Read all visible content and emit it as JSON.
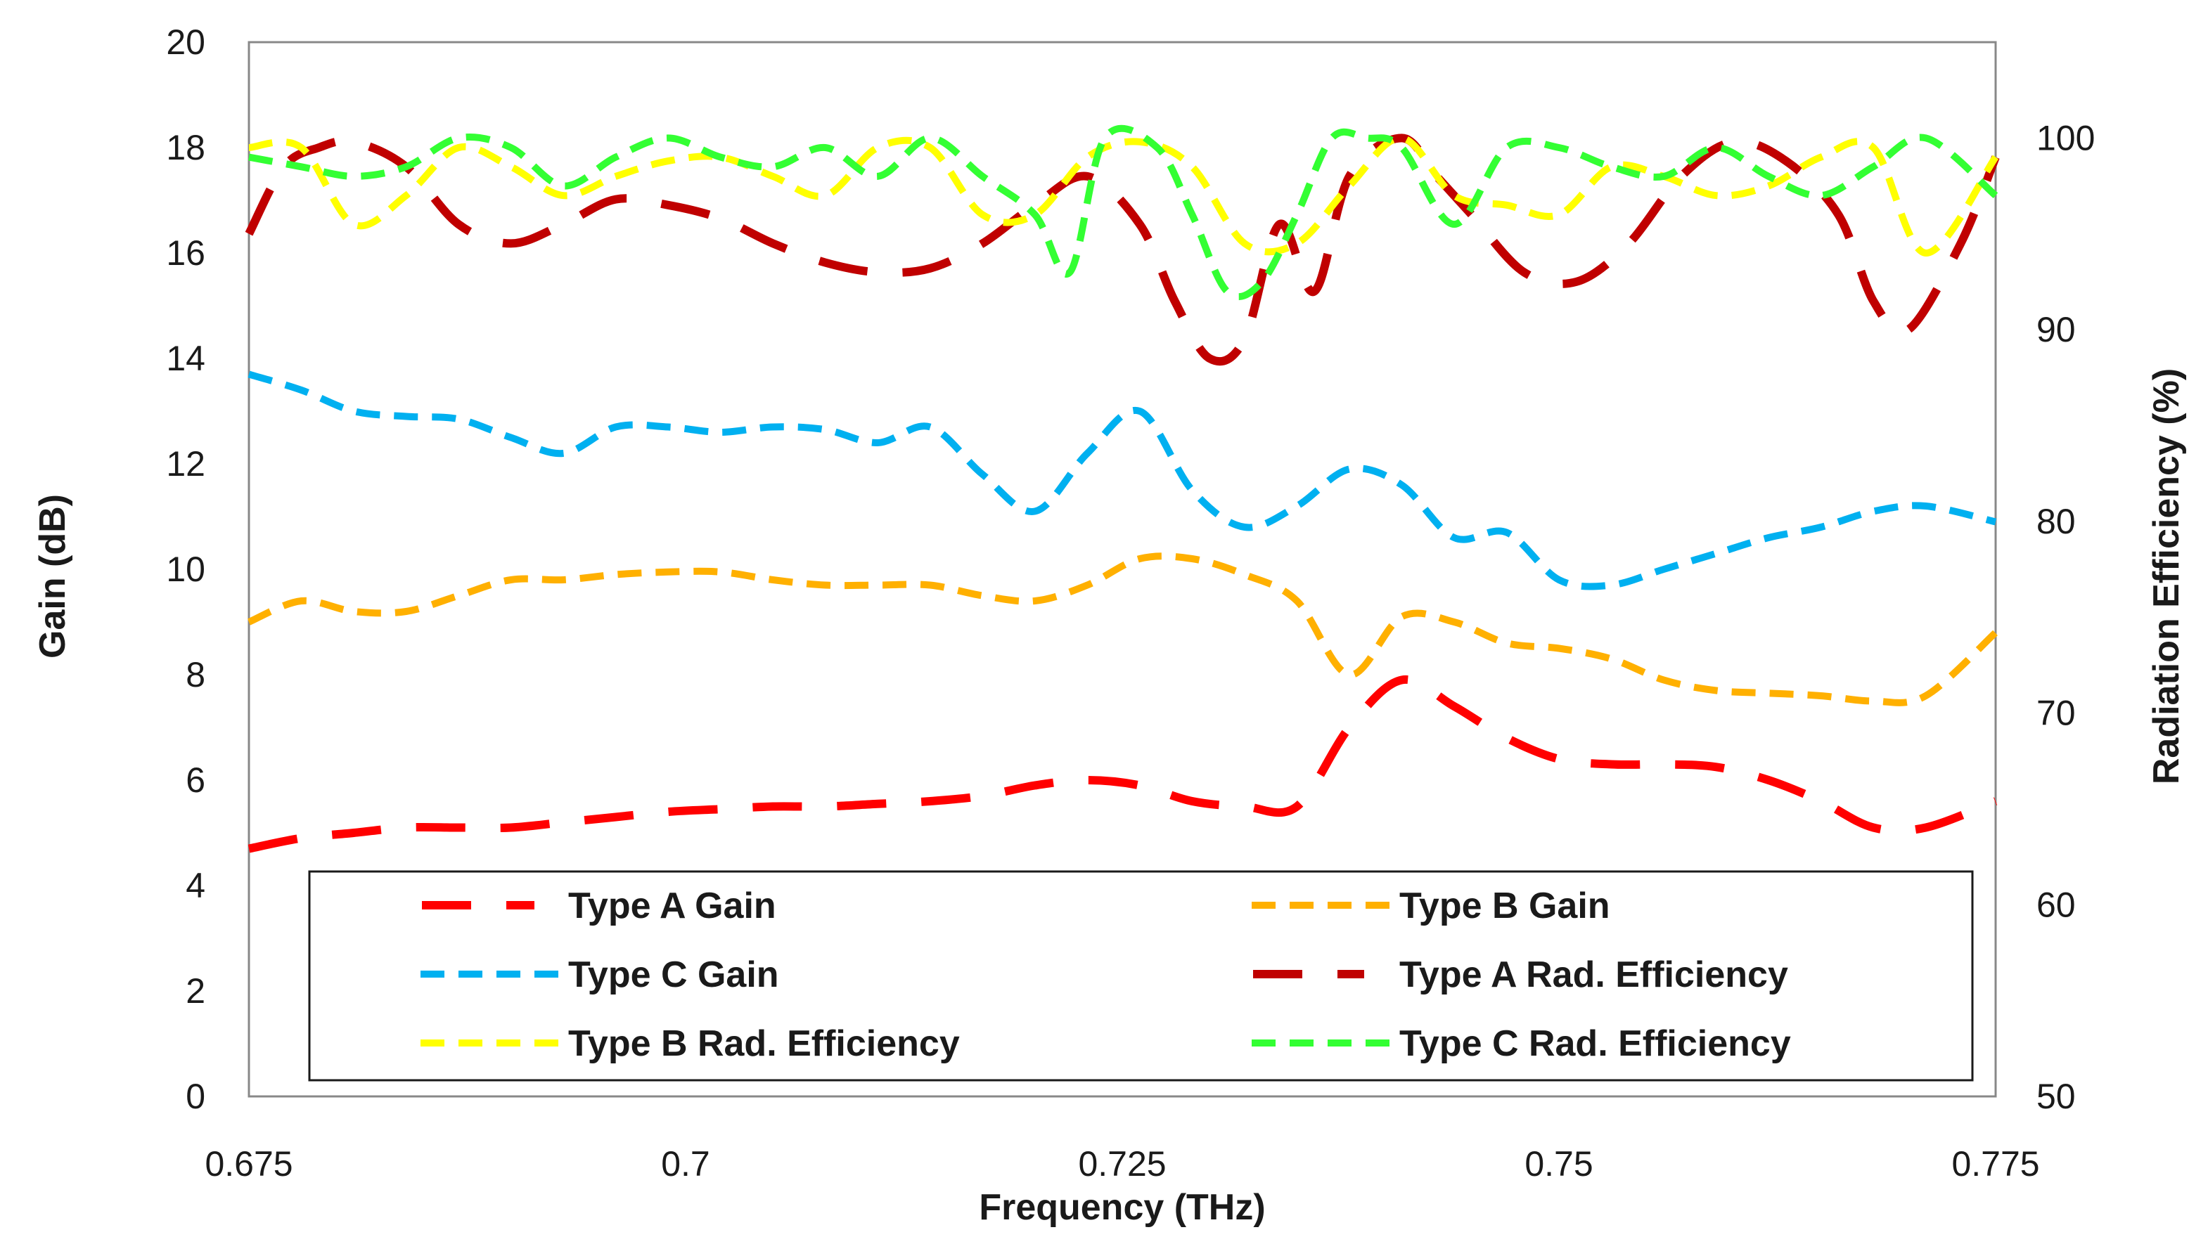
{
  "chart_data": {
    "type": "line",
    "title": "",
    "xlabel": "Frequency (THz)",
    "ylabel": "Gain  (dB)",
    "y2label": "Radiation Efficiency (%)",
    "xlim": [
      0.675,
      0.775
    ],
    "ylim": [
      0,
      20
    ],
    "y2lim": [
      50,
      105
    ],
    "x_ticks": [
      "0.675",
      "0.7",
      "0.725",
      "0.75",
      "0.775"
    ],
    "y_ticks": [
      "0",
      "2",
      "4",
      "6",
      "8",
      "10",
      "12",
      "14",
      "16",
      "18",
      "20"
    ],
    "y2_ticks": [
      "50",
      "60",
      "70",
      "80",
      "90",
      "100"
    ],
    "grid": false,
    "legend_position": "bottom-inside",
    "series": [
      {
        "name": "Type A Gain",
        "axis": "left",
        "color": "#ff0000",
        "dash": "long",
        "x": [
          0.675,
          0.678,
          0.681,
          0.684,
          0.687,
          0.69,
          0.693,
          0.696,
          0.699,
          0.702,
          0.705,
          0.708,
          0.711,
          0.714,
          0.717,
          0.72,
          0.723,
          0.726,
          0.729,
          0.732,
          0.735,
          0.738,
          0.741,
          0.744,
          0.747,
          0.75,
          0.753,
          0.756,
          0.759,
          0.762,
          0.765,
          0.768,
          0.771,
          0.775
        ],
        "y": [
          4.7,
          4.9,
          5.0,
          5.1,
          5.1,
          5.1,
          5.2,
          5.3,
          5.4,
          5.45,
          5.5,
          5.5,
          5.55,
          5.6,
          5.7,
          5.9,
          6.0,
          5.9,
          5.6,
          5.5,
          5.5,
          7.0,
          7.9,
          7.4,
          6.8,
          6.4,
          6.3,
          6.3,
          6.25,
          6.0,
          5.6,
          5.1,
          5.1,
          5.6
        ]
      },
      {
        "name": "Type B Gain",
        "axis": "left",
        "color": "#ffb000",
        "dash": "medium",
        "x": [
          0.675,
          0.678,
          0.681,
          0.684,
          0.687,
          0.69,
          0.693,
          0.696,
          0.699,
          0.702,
          0.705,
          0.708,
          0.711,
          0.714,
          0.717,
          0.72,
          0.723,
          0.726,
          0.729,
          0.732,
          0.735,
          0.738,
          0.741,
          0.744,
          0.747,
          0.75,
          0.753,
          0.756,
          0.759,
          0.762,
          0.765,
          0.768,
          0.771,
          0.775
        ],
        "y": [
          9.0,
          9.4,
          9.2,
          9.2,
          9.5,
          9.8,
          9.8,
          9.9,
          9.95,
          9.95,
          9.8,
          9.7,
          9.7,
          9.7,
          9.5,
          9.4,
          9.7,
          10.2,
          10.2,
          9.9,
          9.4,
          8.0,
          9.1,
          9.0,
          8.6,
          8.5,
          8.3,
          7.9,
          7.7,
          7.65,
          7.6,
          7.5,
          7.6,
          8.8
        ]
      },
      {
        "name": "Type C Gain",
        "axis": "left",
        "color": "#00b0f0",
        "dash": "medium",
        "x": [
          0.675,
          0.678,
          0.681,
          0.684,
          0.687,
          0.69,
          0.693,
          0.696,
          0.699,
          0.702,
          0.705,
          0.708,
          0.711,
          0.714,
          0.717,
          0.72,
          0.723,
          0.726,
          0.729,
          0.732,
          0.735,
          0.738,
          0.741,
          0.744,
          0.747,
          0.75,
          0.753,
          0.756,
          0.759,
          0.762,
          0.765,
          0.768,
          0.771,
          0.775
        ],
        "y": [
          13.7,
          13.4,
          13.0,
          12.9,
          12.85,
          12.5,
          12.2,
          12.7,
          12.7,
          12.6,
          12.7,
          12.65,
          12.4,
          12.7,
          11.8,
          11.1,
          12.2,
          13.0,
          11.5,
          10.8,
          11.2,
          11.9,
          11.6,
          10.6,
          10.7,
          9.8,
          9.7,
          10.0,
          10.3,
          10.6,
          10.8,
          11.1,
          11.2,
          10.9
        ]
      },
      {
        "name": "Type A Rad. Efficiency",
        "axis": "right",
        "color": "#c00000",
        "dash": "long",
        "x": [
          0.675,
          0.677,
          0.679,
          0.681,
          0.684,
          0.687,
          0.69,
          0.693,
          0.696,
          0.699,
          0.702,
          0.705,
          0.708,
          0.711,
          0.714,
          0.717,
          0.72,
          0.723,
          0.726,
          0.728,
          0.73,
          0.732,
          0.734,
          0.736,
          0.738,
          0.741,
          0.743,
          0.745,
          0.748,
          0.751,
          0.754,
          0.757,
          0.76,
          0.763,
          0.766,
          0.768,
          0.77,
          0.773,
          0.775
        ],
        "y": [
          95,
          98.5,
          99.5,
          99.8,
          98.5,
          95.5,
          94.5,
          95.5,
          96.8,
          96.5,
          95.8,
          94.5,
          93.5,
          93.0,
          93.2,
          94.5,
          96.5,
          98.0,
          95.5,
          91.5,
          88.5,
          89.5,
          95.5,
          92.0,
          98.0,
          100.0,
          98.0,
          96.0,
          93.0,
          92.5,
          94.5,
          98.0,
          99.8,
          98.8,
          96.0,
          91.5,
          90.0,
          94.5,
          99.0
        ]
      },
      {
        "name": "Type B Rad. Efficiency",
        "axis": "right",
        "color": "#ffff00",
        "dash": "medium",
        "x": [
          0.675,
          0.678,
          0.681,
          0.684,
          0.687,
          0.69,
          0.693,
          0.696,
          0.699,
          0.702,
          0.705,
          0.708,
          0.711,
          0.714,
          0.717,
          0.72,
          0.723,
          0.726,
          0.729,
          0.732,
          0.735,
          0.738,
          0.741,
          0.744,
          0.747,
          0.75,
          0.753,
          0.756,
          0.759,
          0.762,
          0.765,
          0.768,
          0.771,
          0.775
        ],
        "y": [
          99.5,
          99.5,
          95.5,
          97.0,
          99.5,
          98.5,
          97.0,
          98.0,
          98.8,
          99.0,
          98.0,
          97.0,
          99.5,
          99.5,
          96.0,
          96.0,
          99.0,
          99.8,
          98.5,
          94.5,
          94.5,
          97.5,
          100.0,
          97.0,
          96.5,
          96.0,
          98.5,
          98.0,
          97.0,
          97.5,
          99.0,
          99.5,
          94.0,
          99.0
        ]
      },
      {
        "name": "Type C Rad. Efficiency",
        "axis": "right",
        "color": "#33ff33",
        "dash": "medium",
        "x": [
          0.675,
          0.678,
          0.681,
          0.684,
          0.687,
          0.69,
          0.693,
          0.696,
          0.699,
          0.702,
          0.705,
          0.708,
          0.711,
          0.714,
          0.717,
          0.72,
          0.722,
          0.724,
          0.727,
          0.729,
          0.731,
          0.733,
          0.735,
          0.737,
          0.739,
          0.741,
          0.744,
          0.747,
          0.75,
          0.753,
          0.756,
          0.759,
          0.762,
          0.765,
          0.768,
          0.771,
          0.775
        ],
        "y": [
          99.0,
          98.5,
          98.0,
          98.5,
          100.0,
          99.5,
          97.5,
          99.0,
          100.0,
          99.0,
          98.5,
          99.5,
          98.0,
          100.0,
          98.0,
          96.0,
          93.0,
          100.0,
          99.5,
          96.0,
          92.0,
          92.5,
          96.0,
          100.0,
          100.0,
          99.5,
          95.5,
          99.5,
          99.5,
          98.5,
          98.0,
          99.5,
          98.0,
          97.0,
          98.5,
          100.0,
          97.0
        ]
      }
    ]
  }
}
